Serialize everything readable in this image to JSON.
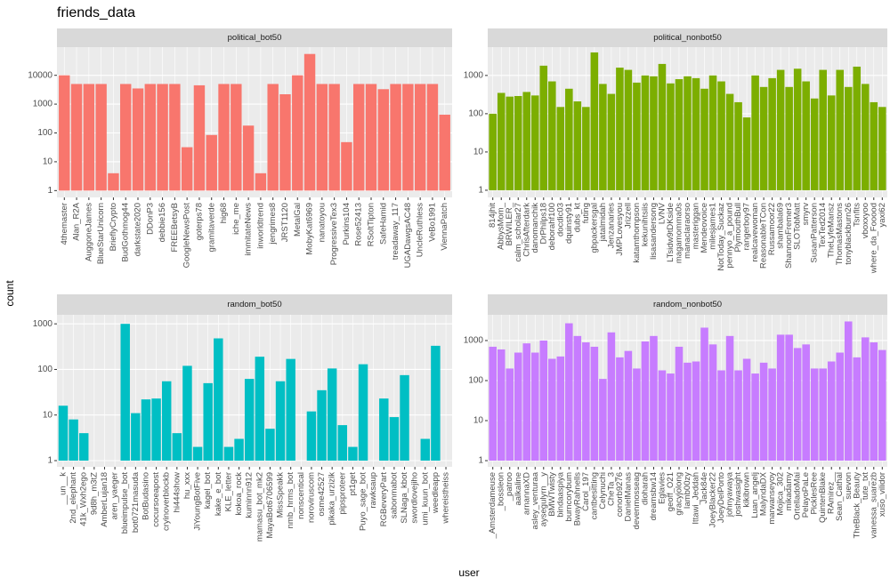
{
  "figure": {
    "title": "friends_data",
    "x_label": "user",
    "y_label": "count"
  },
  "chart_data": [
    {
      "type": "bar",
      "title": "political_bot50",
      "color": "#F8766D",
      "log_scale": true,
      "grid": true,
      "ylim": [
        0.58,
        95000
      ],
      "yticks": [
        1,
        10,
        100,
        1000,
        10000
      ],
      "categories": [
        "4themaster",
        "Alan_R2A",
        "AuggoneJames",
        "BlueStarUnicorn",
        "BrieflyCrypto",
        "BudGothmog44",
        "darkstate2020",
        "DDonP3",
        "debbie156",
        "FREEBetsyB",
        "GoogleNewsPost",
        "goterps78",
        "gramitaverde",
        "hig68",
        "iche_me",
        "immitateNews",
        "inworldtrend",
        "jengrimes8",
        "JRST1120",
        "MetalGal",
        "MobyKat6969",
        "nanatoyou",
        "ProgressiveTex3",
        "Purkins104",
        "Rose52413",
        "RSoltTipton",
        "SafeHamid",
        "treadaway_117",
        "UGADawgsAC48",
        "UncleRuthless",
        "VeBo1991",
        "ViennaPatch"
      ],
      "values": [
        10000,
        5000,
        5000,
        5000,
        4,
        5000,
        3500,
        5000,
        5000,
        5000,
        32,
        4500,
        85,
        5000,
        5000,
        180,
        4,
        5000,
        2200,
        10000,
        55000,
        5000,
        5000,
        48,
        5000,
        5000,
        3300,
        5000,
        5000,
        5000,
        5000,
        430
      ]
    },
    {
      "type": "bar",
      "title": "political_nonbot50",
      "color": "#7CAE00",
      "log_scale": true,
      "grid": true,
      "ylim": [
        0.65,
        5500
      ],
      "yticks": [
        1,
        10,
        100,
        1000
      ],
      "categories": [
        "814jhit",
        "AbbysMom_",
        "BRWILER_",
        "calm_scholar27",
        "ChrisAfterdark",
        "danomanchik",
        "DrPhilps18",
        "deborahf100",
        "docdic03",
        "dquinsty91",
        "dubs_kt",
        "futing",
        "gbpackersgal",
        "jatalmidah",
        "Jenzanaries",
        "JMPLovesyou",
        "Jrizzell",
        "katamthompson",
        "kekunihtsiis",
        "lisasandersong",
        "LVNV",
        "LTsidw9tDKside",
        "magamomma0s",
        "manaclaraorso",
        "masteriggan",
        "Mendeovoice",
        "milesjames1",
        "NotToday_Suckaz",
        "pennyo_a_pound",
        "PlymouthBull",
        "rangerboy97",
        "realcavewoman",
        "ReasonableTCon",
        "Russamoor22",
        "shambala69",
        "ShannonFremer3",
        "SLOTobMatt",
        "smyrv",
        "SusanPatterson",
        "TexTed2014",
        "TheLyfeMansz",
        "ThomasMastons",
        "tonyblackburn26",
        "Tsnfits",
        "vboxxyoo",
        "where_da_Fooood",
        "yaxi62"
      ],
      "values": [
        100,
        350,
        280,
        290,
        370,
        300,
        1800,
        700,
        150,
        450,
        210,
        150,
        4000,
        600,
        330,
        1600,
        1400,
        650,
        1000,
        950,
        2000,
        620,
        800,
        950,
        850,
        450,
        1000,
        700,
        330,
        200,
        80,
        1000,
        500,
        850,
        1400,
        500,
        1500,
        700,
        250,
        1400,
        300,
        1400,
        500,
        1700,
        600,
        200,
        150
      ]
    },
    {
      "type": "bar",
      "title": "random_bot50",
      "color": "#00BFC4",
      "log_scale": true,
      "grid": true,
      "ylim": [
        0.73,
        1580
      ],
      "yticks": [
        1,
        10,
        100,
        1000
      ],
      "categories": [
        "__un__k",
        "2nd_elephant",
        "41k_Wxh2ego",
        "9d8h_m3tZ",
        "AmberLujan18",
        "aren_yaeger",
        "blueimpulse_bot",
        "bot0721masuda",
        "BotBudasino",
        "cocursoeapost",
        "cryinoverblockb",
        "hi444show",
        "hu_xxx",
        "JiYoungBotFive",
        "kagel_bot",
        "kake_e_bot",
        "KLE_letter",
        "kokoa_rock",
        "kuminnn912",
        "mamasu_bot_mk2",
        "MayaBot6706599",
        "MissSpeakk",
        "nmb_hrms_bot",
        "nonscentical",
        "noroviruscom",
        "osme42527",
        "pikaka_urzizik",
        "pipsproteer",
        "pt1get",
        "Puyo_sage_bot",
        "rawksaup",
        "RGBeveryPart",
        "sabonmabot",
        "SLNaga_kbot",
        "swordlovejiho",
        "umi_kuun_bot",
        "weedleapp",
        "whereistheiss"
      ],
      "values": [
        16,
        8,
        4,
        1,
        1,
        1,
        1000,
        11,
        22,
        23,
        55,
        4,
        120,
        2,
        50,
        480,
        2,
        3,
        62,
        190,
        5,
        55,
        170,
        1,
        12,
        35,
        105,
        6,
        2,
        130,
        1,
        23,
        9,
        75,
        1,
        3,
        330,
        1
      ]
    },
    {
      "type": "bar",
      "title": "random_nonbot50",
      "color": "#C77CFF",
      "log_scale": true,
      "grid": true,
      "ylim": [
        0.7,
        4400
      ],
      "yticks": [
        1,
        10,
        100,
        1000
      ],
      "categories": [
        "_Amsterdameuse",
        "_bossleon",
        "_patroo",
        "aalkaline",
        "arnannaXD",
        "asley_venturaa",
        "aysegulyrn__y",
        "BMWTwisty",
        "bindaaspiya",
        "burncorybum",
        "BwayRahnells",
        "Carol_197",
        "cantbesitting",
        "Celynuchi",
        "CheTa_3",
        "conorb9276",
        "DanielManas",
        "devenmosseag",
        "dioharah",
        "dreamsbw14",
        "Eglavies",
        "geoff_O21",
        "gracyjolong",
        "Iamb00zy",
        "Ittawi_Jeddah",
        "Jack84e",
        "JoeyBlacker22",
        "JoeyDelPorto",
        "johnyawaya",
        "joshwasight",
        "kikibrown",
        "Luan_angelj",
        "MalyndaDX",
        "marwanseyoy",
        "Mojica_302",
        "mikadamy",
        "OrtelladoMai",
        "PelayoPaLe",
        "PicklesRee",
        "QuintenBlake",
        "RAmirez__",
        "Sean_Cathal",
        "suevon",
        "TheBlack_Beauty",
        "tute_txt",
        "vanessa_suarezb",
        "xuso_vilidor"
      ],
      "values": [
        700,
        600,
        200,
        500,
        850,
        500,
        1000,
        350,
        400,
        2700,
        1300,
        900,
        700,
        110,
        1600,
        380,
        550,
        200,
        950,
        1300,
        180,
        150,
        700,
        280,
        300,
        2100,
        800,
        180,
        1300,
        180,
        350,
        150,
        280,
        200,
        1400,
        1400,
        650,
        800,
        200,
        200,
        300,
        500,
        3000,
        380,
        1200,
        900,
        580
      ]
    }
  ]
}
